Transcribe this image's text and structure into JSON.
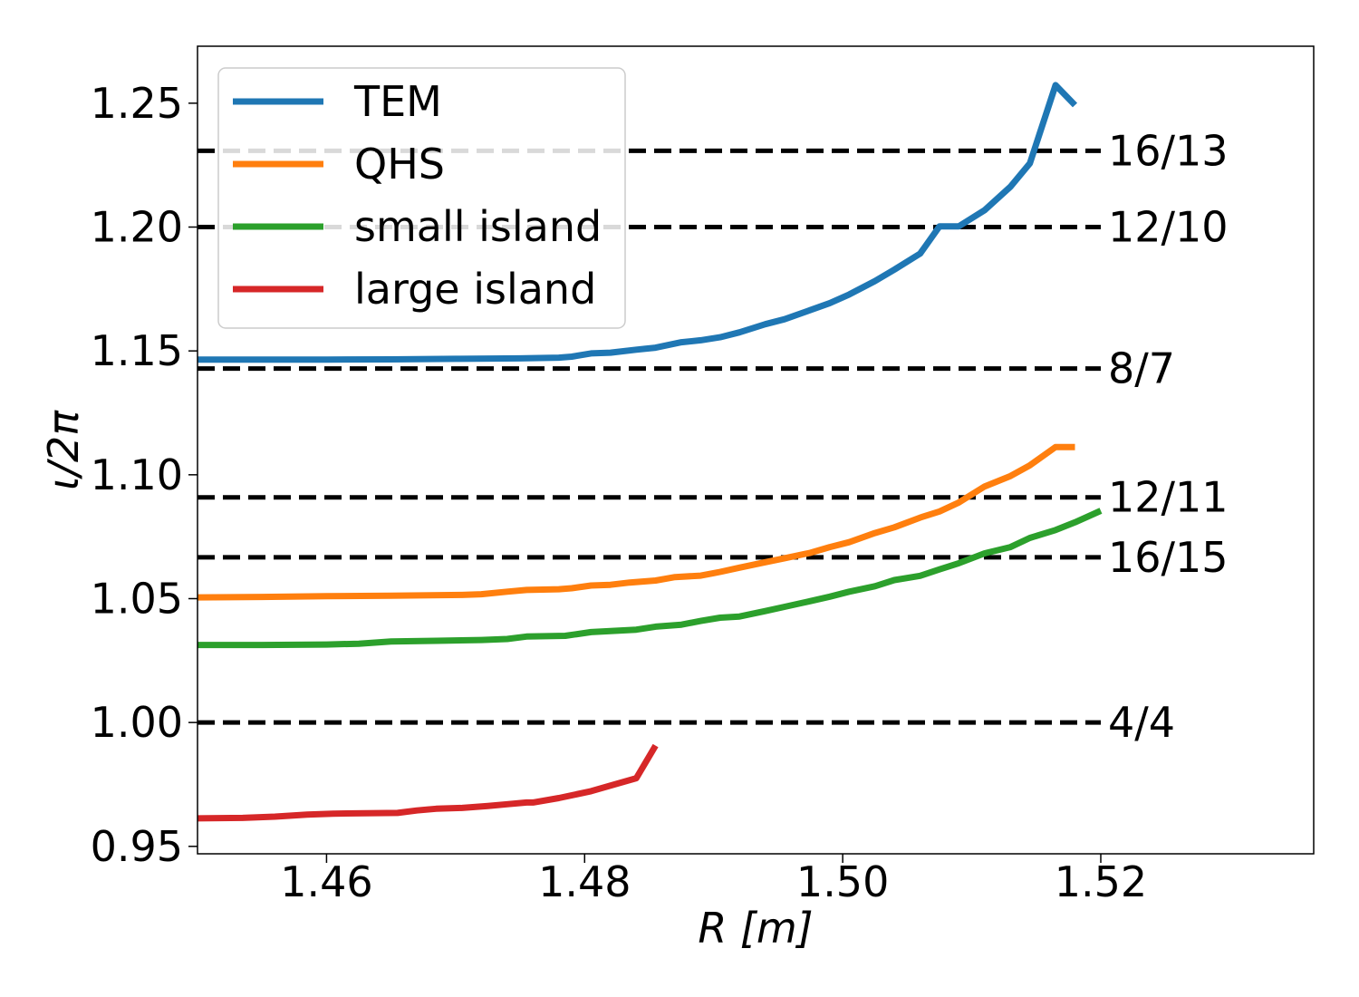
{
  "chart_data": {
    "type": "line",
    "xlabel": "R [m]",
    "ylabel": "ι/2π",
    "xlim": [
      1.45,
      1.5365
    ],
    "ylim": [
      0.947,
      1.273
    ],
    "xticks": [
      1.46,
      1.48,
      1.5,
      1.52
    ],
    "xtick_labels": [
      "1.46",
      "1.48",
      "1.50",
      "1.52"
    ],
    "yticks": [
      0.95,
      1.0,
      1.05,
      1.1,
      1.15,
      1.2,
      1.25
    ],
    "ytick_labels": [
      "0.95",
      "1.00",
      "1.05",
      "1.10",
      "1.15",
      "1.20",
      "1.25"
    ],
    "legend_position": "top-left",
    "grid": false,
    "series": [
      {
        "name": "TEM",
        "color": "#1f77b4",
        "points": [
          [
            1.45,
            1.1465
          ],
          [
            1.455,
            1.1465
          ],
          [
            1.46,
            1.1465
          ],
          [
            1.465,
            1.1466
          ],
          [
            1.47,
            1.1468
          ],
          [
            1.475,
            1.147
          ],
          [
            1.478,
            1.1473
          ],
          [
            1.479,
            1.1477
          ],
          [
            1.4805,
            1.149
          ],
          [
            1.482,
            1.1493
          ],
          [
            1.484,
            1.1505
          ],
          [
            1.4855,
            1.1513
          ],
          [
            1.4875,
            1.1535
          ],
          [
            1.489,
            1.1543
          ],
          [
            1.4905,
            1.1555
          ],
          [
            1.492,
            1.1575
          ],
          [
            1.494,
            1.1608
          ],
          [
            1.4955,
            1.1628
          ],
          [
            1.4975,
            1.1665
          ],
          [
            1.499,
            1.1693
          ],
          [
            1.5005,
            1.1728
          ],
          [
            1.5025,
            1.1782
          ],
          [
            1.504,
            1.1828
          ],
          [
            1.506,
            1.1893
          ],
          [
            1.5075,
            1.2003
          ],
          [
            1.509,
            1.2003
          ],
          [
            1.511,
            1.2068
          ],
          [
            1.513,
            1.2163
          ],
          [
            1.5145,
            1.2257
          ],
          [
            1.5165,
            1.2573
          ],
          [
            1.518,
            1.2492
          ]
        ]
      },
      {
        "name": "QHS",
        "color": "#ff7f0e",
        "points": [
          [
            1.45,
            1.0505
          ],
          [
            1.455,
            1.0507
          ],
          [
            1.46,
            1.051
          ],
          [
            1.465,
            1.0512
          ],
          [
            1.4705,
            1.0515
          ],
          [
            1.472,
            1.0518
          ],
          [
            1.474,
            1.0528
          ],
          [
            1.4755,
            1.0535
          ],
          [
            1.478,
            1.0538
          ],
          [
            1.479,
            1.0542
          ],
          [
            1.4805,
            1.0553
          ],
          [
            1.482,
            1.0556
          ],
          [
            1.4835,
            1.0565
          ],
          [
            1.4855,
            1.0573
          ],
          [
            1.487,
            1.0587
          ],
          [
            1.489,
            1.0593
          ],
          [
            1.4905,
            1.0608
          ],
          [
            1.492,
            1.0625
          ],
          [
            1.494,
            1.0647
          ],
          [
            1.4955,
            1.0663
          ],
          [
            1.4975,
            1.0685
          ],
          [
            1.499,
            1.0708
          ],
          [
            1.5005,
            1.0728
          ],
          [
            1.5025,
            1.0765
          ],
          [
            1.504,
            1.0788
          ],
          [
            1.506,
            1.0827
          ],
          [
            1.5075,
            1.0852
          ],
          [
            1.509,
            1.0888
          ],
          [
            1.511,
            1.0953
          ],
          [
            1.513,
            1.0995
          ],
          [
            1.5145,
            1.1038
          ],
          [
            1.5165,
            1.1112
          ],
          [
            1.518,
            1.1112
          ]
        ]
      },
      {
        "name": "small island",
        "color": "#2ca02c",
        "points": [
          [
            1.45,
            1.0313
          ],
          [
            1.455,
            1.0313
          ],
          [
            1.46,
            1.0315
          ],
          [
            1.4625,
            1.0318
          ],
          [
            1.465,
            1.0327
          ],
          [
            1.4685,
            1.033
          ],
          [
            1.472,
            1.0333
          ],
          [
            1.474,
            1.0337
          ],
          [
            1.4755,
            1.0347
          ],
          [
            1.4785,
            1.035
          ],
          [
            1.4805,
            1.0365
          ],
          [
            1.484,
            1.0375
          ],
          [
            1.4855,
            1.0387
          ],
          [
            1.4875,
            1.0395
          ],
          [
            1.489,
            1.041
          ],
          [
            1.4905,
            1.0423
          ],
          [
            1.492,
            1.0428
          ],
          [
            1.494,
            1.045
          ],
          [
            1.4955,
            1.0467
          ],
          [
            1.4975,
            1.049
          ],
          [
            1.499,
            1.0508
          ],
          [
            1.5005,
            1.0528
          ],
          [
            1.5025,
            1.055
          ],
          [
            1.504,
            1.0575
          ],
          [
            1.506,
            1.0592
          ],
          [
            1.5075,
            1.0618
          ],
          [
            1.509,
            1.0643
          ],
          [
            1.511,
            1.0683
          ],
          [
            1.513,
            1.0708
          ],
          [
            1.5145,
            1.0745
          ],
          [
            1.5165,
            1.0777
          ],
          [
            1.518,
            1.0808
          ],
          [
            1.52,
            1.0855
          ]
        ]
      },
      {
        "name": "large island",
        "color": "#d62728",
        "points": [
          [
            1.45,
            0.9613
          ],
          [
            1.4535,
            0.9615
          ],
          [
            1.456,
            0.962
          ],
          [
            1.4585,
            0.9628
          ],
          [
            1.4605,
            0.9632
          ],
          [
            1.4655,
            0.9635
          ],
          [
            1.467,
            0.9645
          ],
          [
            1.4685,
            0.9652
          ],
          [
            1.4705,
            0.9655
          ],
          [
            1.4725,
            0.9663
          ],
          [
            1.474,
            0.967
          ],
          [
            1.4755,
            0.9677
          ],
          [
            1.476,
            0.9677
          ],
          [
            1.478,
            0.9695
          ],
          [
            1.4805,
            0.9723
          ],
          [
            1.482,
            0.9745
          ],
          [
            1.484,
            0.9775
          ],
          [
            1.4855,
            0.9907
          ]
        ]
      }
    ],
    "reference_lines": [
      {
        "value": 1.2308,
        "label": "16/13"
      },
      {
        "value": 1.2,
        "label": "12/10"
      },
      {
        "value": 1.1429,
        "label": "8/7"
      },
      {
        "value": 1.0909,
        "label": "12/11"
      },
      {
        "value": 1.0667,
        "label": "16/15"
      },
      {
        "value": 1.0,
        "label": "4/4"
      }
    ]
  }
}
